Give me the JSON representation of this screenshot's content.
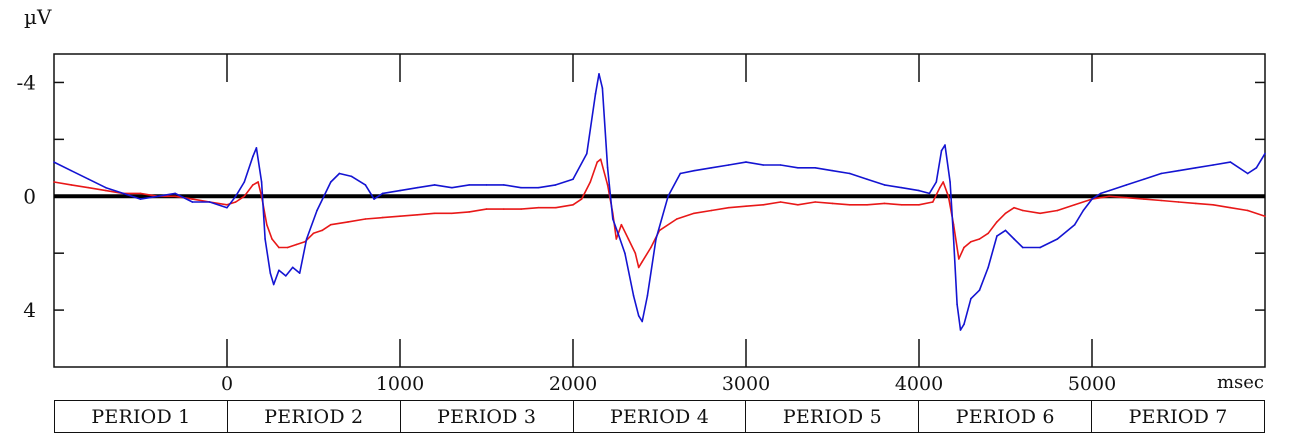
{
  "chart_data": {
    "type": "line",
    "ylabel": "µV",
    "xlabel": "msec",
    "xlim": [
      -1000,
      6000
    ],
    "ylim": [
      -5,
      6
    ],
    "y_inverted": true,
    "y_ticks": [
      -4,
      -2,
      0,
      2,
      4
    ],
    "y_tick_labels": [
      "-4",
      "",
      "0",
      "",
      "4"
    ],
    "x_ticks": [
      0,
      1000,
      2000,
      3000,
      4000,
      5000
    ],
    "x_tick_labels": [
      "0",
      "1000",
      "2000",
      "3000",
      "4000",
      "5000"
    ],
    "zero_line": true,
    "grid": false,
    "legend": "none",
    "series": [
      {
        "color": "#1414d2",
        "points": [
          [
            -1000,
            -1.2
          ],
          [
            -900,
            -0.9
          ],
          [
            -800,
            -0.6
          ],
          [
            -700,
            -0.3
          ],
          [
            -600,
            -0.1
          ],
          [
            -500,
            0.1
          ],
          [
            -400,
            0.0
          ],
          [
            -300,
            -0.1
          ],
          [
            -200,
            0.2
          ],
          [
            -100,
            0.2
          ],
          [
            0,
            0.4
          ],
          [
            50,
            0.0
          ],
          [
            100,
            -0.5
          ],
          [
            150,
            -1.4
          ],
          [
            170,
            -1.7
          ],
          [
            200,
            -0.5
          ],
          [
            220,
            1.5
          ],
          [
            250,
            2.7
          ],
          [
            270,
            3.1
          ],
          [
            300,
            2.6
          ],
          [
            340,
            2.8
          ],
          [
            380,
            2.5
          ],
          [
            420,
            2.7
          ],
          [
            460,
            1.5
          ],
          [
            520,
            0.5
          ],
          [
            600,
            -0.5
          ],
          [
            650,
            -0.8
          ],
          [
            720,
            -0.7
          ],
          [
            800,
            -0.4
          ],
          [
            850,
            0.1
          ],
          [
            900,
            -0.1
          ],
          [
            1000,
            -0.2
          ],
          [
            1100,
            -0.3
          ],
          [
            1200,
            -0.4
          ],
          [
            1300,
            -0.3
          ],
          [
            1400,
            -0.4
          ],
          [
            1500,
            -0.4
          ],
          [
            1600,
            -0.4
          ],
          [
            1700,
            -0.3
          ],
          [
            1800,
            -0.3
          ],
          [
            1900,
            -0.4
          ],
          [
            2000,
            -0.6
          ],
          [
            2080,
            -1.5
          ],
          [
            2130,
            -3.6
          ],
          [
            2150,
            -4.3
          ],
          [
            2170,
            -3.8
          ],
          [
            2200,
            -1.0
          ],
          [
            2230,
            0.8
          ],
          [
            2260,
            1.3
          ],
          [
            2300,
            2.0
          ],
          [
            2350,
            3.5
          ],
          [
            2380,
            4.2
          ],
          [
            2400,
            4.4
          ],
          [
            2430,
            3.5
          ],
          [
            2480,
            1.5
          ],
          [
            2550,
            0.0
          ],
          [
            2620,
            -0.8
          ],
          [
            2700,
            -0.9
          ],
          [
            2800,
            -1.0
          ],
          [
            2900,
            -1.1
          ],
          [
            3000,
            -1.2
          ],
          [
            3100,
            -1.1
          ],
          [
            3200,
            -1.1
          ],
          [
            3300,
            -1.0
          ],
          [
            3400,
            -1.0
          ],
          [
            3500,
            -0.9
          ],
          [
            3600,
            -0.8
          ],
          [
            3700,
            -0.6
          ],
          [
            3800,
            -0.4
          ],
          [
            3900,
            -0.3
          ],
          [
            4000,
            -0.2
          ],
          [
            4060,
            -0.1
          ],
          [
            4100,
            -0.5
          ],
          [
            4130,
            -1.6
          ],
          [
            4150,
            -1.8
          ],
          [
            4180,
            -0.5
          ],
          [
            4200,
            1.5
          ],
          [
            4220,
            3.8
          ],
          [
            4240,
            4.7
          ],
          [
            4260,
            4.5
          ],
          [
            4300,
            3.6
          ],
          [
            4350,
            3.3
          ],
          [
            4400,
            2.5
          ],
          [
            4450,
            1.4
          ],
          [
            4500,
            1.2
          ],
          [
            4550,
            1.5
          ],
          [
            4600,
            1.8
          ],
          [
            4700,
            1.8
          ],
          [
            4800,
            1.5
          ],
          [
            4900,
            1.0
          ],
          [
            4950,
            0.5
          ],
          [
            5000,
            0.1
          ],
          [
            5050,
            -0.1
          ],
          [
            5100,
            -0.2
          ],
          [
            5200,
            -0.4
          ],
          [
            5300,
            -0.6
          ],
          [
            5400,
            -0.8
          ],
          [
            5500,
            -0.9
          ],
          [
            5600,
            -1.0
          ],
          [
            5700,
            -1.1
          ],
          [
            5800,
            -1.2
          ],
          [
            5900,
            -0.8
          ],
          [
            5950,
            -1.0
          ],
          [
            6000,
            -1.5
          ]
        ]
      },
      {
        "color": "#e81818",
        "points": [
          [
            -1000,
            -0.5
          ],
          [
            -900,
            -0.4
          ],
          [
            -800,
            -0.3
          ],
          [
            -700,
            -0.2
          ],
          [
            -600,
            -0.1
          ],
          [
            -500,
            -0.1
          ],
          [
            -400,
            0.0
          ],
          [
            -300,
            0.0
          ],
          [
            -200,
            0.1
          ],
          [
            -100,
            0.2
          ],
          [
            0,
            0.3
          ],
          [
            50,
            0.2
          ],
          [
            100,
            0.0
          ],
          [
            150,
            -0.4
          ],
          [
            180,
            -0.5
          ],
          [
            200,
            0.0
          ],
          [
            230,
            1.0
          ],
          [
            260,
            1.5
          ],
          [
            300,
            1.8
          ],
          [
            350,
            1.8
          ],
          [
            400,
            1.7
          ],
          [
            450,
            1.6
          ],
          [
            500,
            1.3
          ],
          [
            550,
            1.2
          ],
          [
            600,
            1.0
          ],
          [
            700,
            0.9
          ],
          [
            800,
            0.8
          ],
          [
            900,
            0.75
          ],
          [
            1000,
            0.7
          ],
          [
            1100,
            0.65
          ],
          [
            1200,
            0.6
          ],
          [
            1300,
            0.6
          ],
          [
            1400,
            0.55
          ],
          [
            1500,
            0.45
          ],
          [
            1600,
            0.45
          ],
          [
            1700,
            0.45
          ],
          [
            1800,
            0.4
          ],
          [
            1900,
            0.4
          ],
          [
            2000,
            0.3
          ],
          [
            2050,
            0.1
          ],
          [
            2100,
            -0.5
          ],
          [
            2140,
            -1.2
          ],
          [
            2160,
            -1.3
          ],
          [
            2200,
            -0.4
          ],
          [
            2230,
            0.6
          ],
          [
            2250,
            1.5
          ],
          [
            2280,
            1.0
          ],
          [
            2320,
            1.5
          ],
          [
            2360,
            2.0
          ],
          [
            2380,
            2.5
          ],
          [
            2400,
            2.3
          ],
          [
            2450,
            1.8
          ],
          [
            2500,
            1.2
          ],
          [
            2600,
            0.8
          ],
          [
            2700,
            0.6
          ],
          [
            2800,
            0.5
          ],
          [
            2900,
            0.4
          ],
          [
            3000,
            0.35
          ],
          [
            3100,
            0.3
          ],
          [
            3200,
            0.2
          ],
          [
            3300,
            0.3
          ],
          [
            3400,
            0.2
          ],
          [
            3500,
            0.25
          ],
          [
            3600,
            0.3
          ],
          [
            3700,
            0.3
          ],
          [
            3800,
            0.25
          ],
          [
            3900,
            0.3
          ],
          [
            4000,
            0.3
          ],
          [
            4080,
            0.2
          ],
          [
            4120,
            -0.3
          ],
          [
            4140,
            -0.5
          ],
          [
            4170,
            0.0
          ],
          [
            4200,
            1.0
          ],
          [
            4230,
            2.2
          ],
          [
            4260,
            1.8
          ],
          [
            4300,
            1.6
          ],
          [
            4350,
            1.5
          ],
          [
            4400,
            1.3
          ],
          [
            4450,
            0.9
          ],
          [
            4500,
            0.6
          ],
          [
            4550,
            0.4
          ],
          [
            4600,
            0.5
          ],
          [
            4700,
            0.6
          ],
          [
            4800,
            0.5
          ],
          [
            4900,
            0.3
          ],
          [
            5000,
            0.1
          ],
          [
            5100,
            0.0
          ],
          [
            5200,
            0.05
          ],
          [
            5300,
            0.1
          ],
          [
            5400,
            0.15
          ],
          [
            5500,
            0.2
          ],
          [
            5600,
            0.25
          ],
          [
            5700,
            0.3
          ],
          [
            5800,
            0.4
          ],
          [
            5900,
            0.5
          ],
          [
            6000,
            0.7
          ]
        ]
      }
    ]
  },
  "periods": [
    "PERIOD 1",
    "PERIOD 2",
    "PERIOD 3",
    "PERIOD 4",
    "PERIOD 5",
    "PERIOD 6",
    "PERIOD 7"
  ]
}
